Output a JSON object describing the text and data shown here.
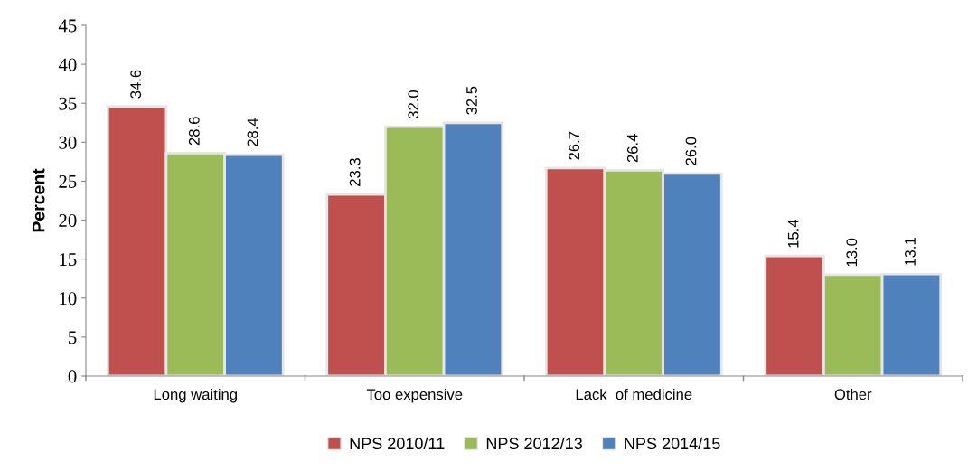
{
  "chart_data": {
    "type": "bar",
    "ylabel": "Percent",
    "categories": [
      "Long waiting",
      "Too expensive",
      "Lack  of medicine",
      "Other"
    ],
    "series": [
      {
        "name": "NPS 2010/11",
        "color": "#c0504d",
        "values": [
          34.6,
          23.3,
          26.7,
          15.4
        ],
        "value_labels": [
          "34.6",
          "23.3",
          "26.7",
          "15.4"
        ]
      },
      {
        "name": "NPS 2012/13",
        "color": "#9bbb59",
        "values": [
          28.6,
          32.0,
          26.4,
          13.0
        ],
        "value_labels": [
          "28.6",
          "32.0",
          "26.4",
          "13.0"
        ]
      },
      {
        "name": "NPS 2014/15",
        "color": "#4f81bd",
        "values": [
          28.4,
          32.5,
          26.0,
          13.1
        ],
        "value_labels": [
          "28.4",
          "32.5",
          "26.0",
          "13.1"
        ]
      }
    ],
    "ylim": [
      0,
      45
    ],
    "yticks": [
      0,
      5,
      10,
      15,
      20,
      25,
      30,
      35,
      40,
      45
    ],
    "grid": false,
    "legend": "bottom"
  }
}
